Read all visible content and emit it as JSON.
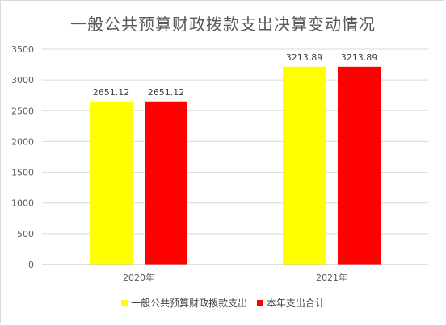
{
  "chart_data": {
    "type": "bar",
    "title": "一般公共预算财政拨款支出决算变动情况",
    "categories": [
      "2020年",
      "2021年"
    ],
    "series": [
      {
        "name": "一般公共预算财政拨款支出",
        "values": [
          2651.12,
          3213.89
        ],
        "labels": [
          "2651.12",
          "3213.89"
        ],
        "color": "#FFFF00"
      },
      {
        "name": "本年支出合计",
        "values": [
          2651.12,
          3213.89
        ],
        "labels": [
          "2651.12",
          "3213.89"
        ],
        "color": "#FF0000"
      }
    ],
    "ylim": [
      0,
      3500
    ],
    "yticks": [
      "0",
      "500",
      "1000",
      "1500",
      "2000",
      "2500",
      "3000",
      "3500"
    ],
    "grid": true,
    "legend": "bottom",
    "xlabel": "",
    "ylabel": ""
  }
}
